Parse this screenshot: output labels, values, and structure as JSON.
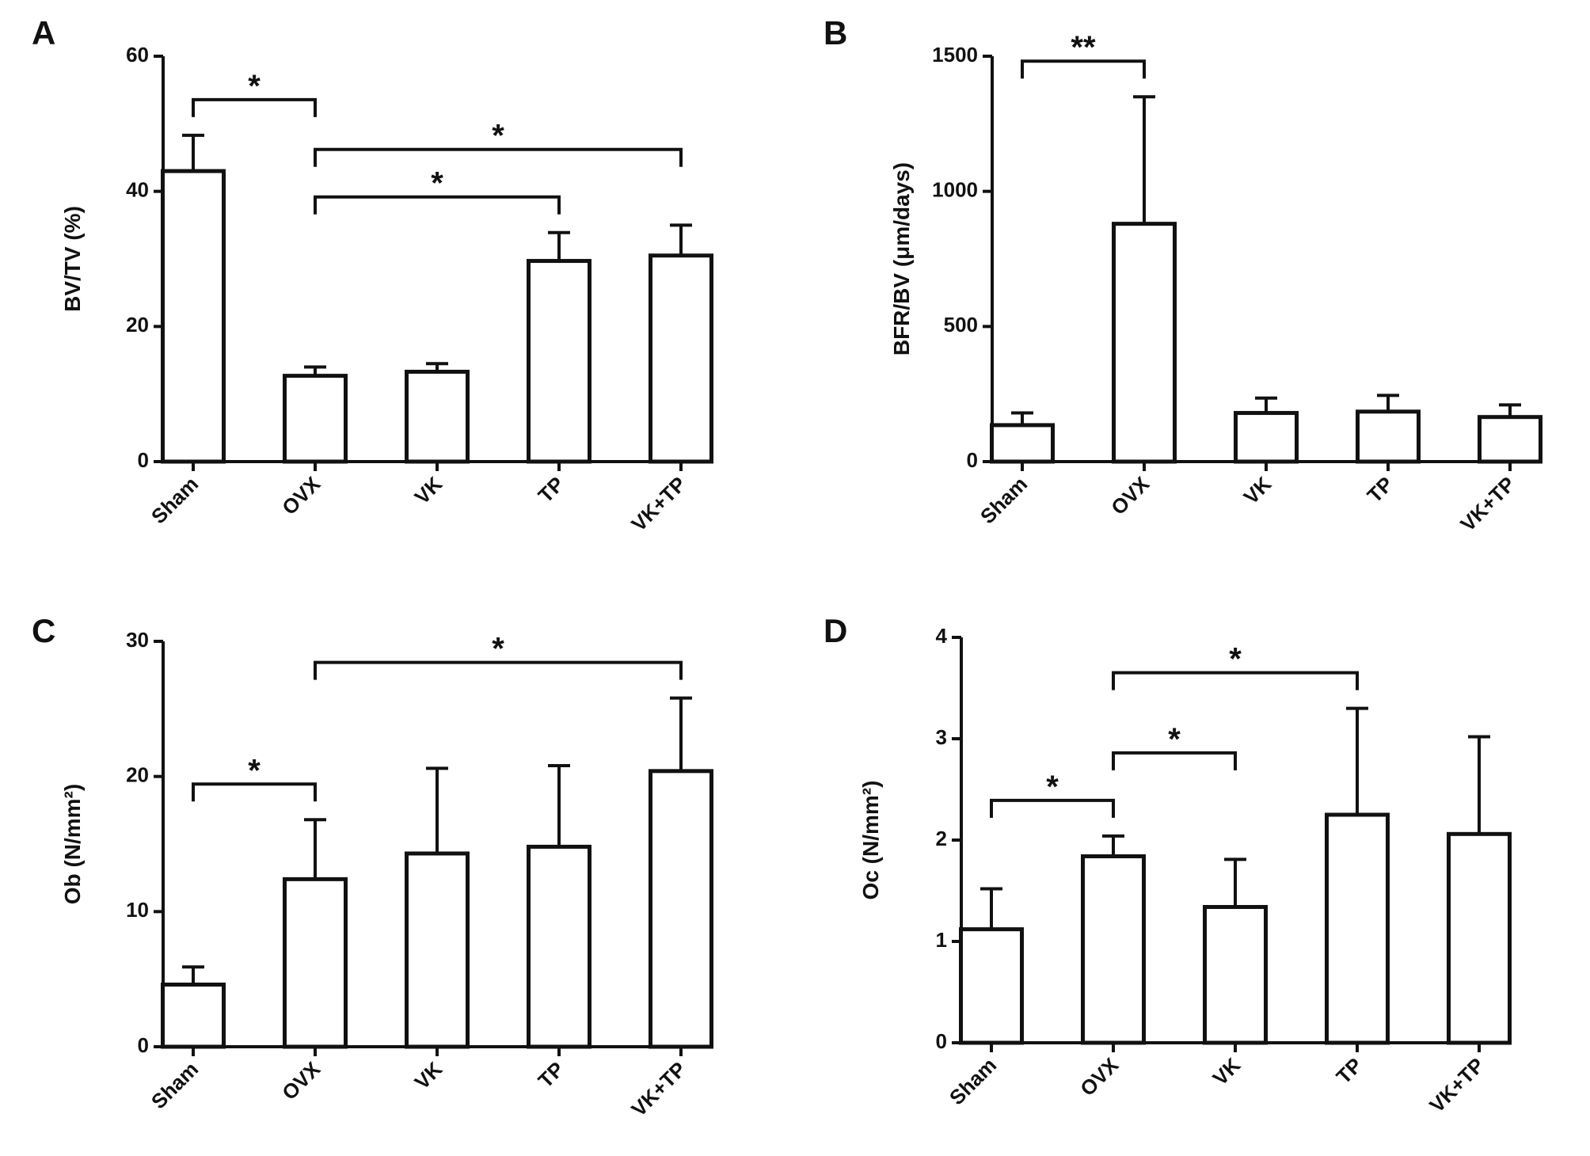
{
  "chart_data": [
    {
      "type": "bar",
      "title": "A",
      "ylabel": "BV/TV (%)",
      "categories": [
        "Sham",
        "OVX",
        "VK",
        "TP",
        "VK+TP"
      ],
      "values": [
        43,
        12.7,
        13.3,
        29.7,
        30.5
      ],
      "errors": [
        5.3,
        1.3,
        1.2,
        4.2,
        4.5
      ],
      "ylim": [
        0,
        60
      ],
      "yticks": [
        0,
        20,
        40,
        60
      ],
      "color": "#ffffff",
      "annotations": [
        {
          "text": "*",
          "from": 1,
          "to": 3
        },
        {
          "text": "*",
          "from": 1,
          "to": 4
        },
        {
          "text": "*",
          "from": 0,
          "to": 1
        }
      ]
    },
    {
      "type": "bar",
      "title": "B",
      "ylabel": "BFR/BV (μm/days)",
      "categories": [
        "Sham",
        "OVX",
        "VK",
        "TP",
        "VK+TP"
      ],
      "values": [
        135,
        880,
        180,
        185,
        165
      ],
      "errors": [
        45,
        470,
        55,
        60,
        45
      ],
      "ylim": [
        0,
        1500
      ],
      "yticks": [
        0,
        500,
        1000,
        1500
      ],
      "color": "#ffffff",
      "annotations": [
        {
          "text": "**",
          "from": 0,
          "to": 1
        }
      ]
    },
    {
      "type": "bar",
      "title": "C",
      "ylabel": "Ob (N/mm²)",
      "categories": [
        "Sham",
        "OVX",
        "VK",
        "TP",
        "VK+TP"
      ],
      "values": [
        4.6,
        12.4,
        14.3,
        14.8,
        20.4
      ],
      "errors": [
        1.3,
        4.4,
        6.3,
        6,
        5.4
      ],
      "ylim": [
        0,
        30
      ],
      "yticks": [
        0,
        10,
        20,
        30
      ],
      "color": "#ffffff",
      "annotations": [
        {
          "text": "*",
          "from": 0,
          "to": 1
        },
        {
          "text": "*",
          "from": 1,
          "to": 4
        }
      ]
    },
    {
      "type": "bar",
      "title": "D",
      "ylabel": "Oc (N/mm²)",
      "categories": [
        "Sham",
        "OVX",
        "VK",
        "TP",
        "VK+TP"
      ],
      "values": [
        1.12,
        1.84,
        1.34,
        2.25,
        2.06
      ],
      "errors": [
        0.4,
        0.2,
        0.47,
        1.05,
        0.96
      ],
      "ylim": [
        0,
        4
      ],
      "yticks": [
        0,
        1,
        2,
        3,
        4
      ],
      "color": "#ffffff",
      "annotations": [
        {
          "text": "*",
          "from": 0,
          "to": 1
        },
        {
          "text": "*",
          "from": 1,
          "to": 2
        },
        {
          "text": "*",
          "from": 1,
          "to": 3
        }
      ]
    }
  ]
}
